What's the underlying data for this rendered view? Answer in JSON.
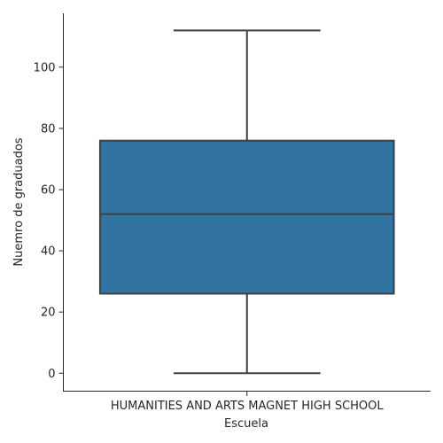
{
  "chart_data": {
    "type": "box",
    "xlabel": "Escuela",
    "ylabel": "Nuemro de graduados",
    "categories": [
      "HUMANITIES AND ARTS MAGNET HIGH SCHOOL"
    ],
    "boxes": [
      {
        "category": "HUMANITIES AND ARTS MAGNET HIGH SCHOOL",
        "min": 0,
        "q1": 26,
        "median": 52,
        "q3": 76,
        "max": 112
      }
    ],
    "yticks": [
      0,
      20,
      40,
      60,
      80,
      100
    ],
    "ylim": [
      -6,
      117.6
    ],
    "grid": false,
    "legend": "none",
    "colors": {
      "box_fill": "#3274a1",
      "line": "#3f3f3f",
      "axis": "#262626"
    }
  }
}
